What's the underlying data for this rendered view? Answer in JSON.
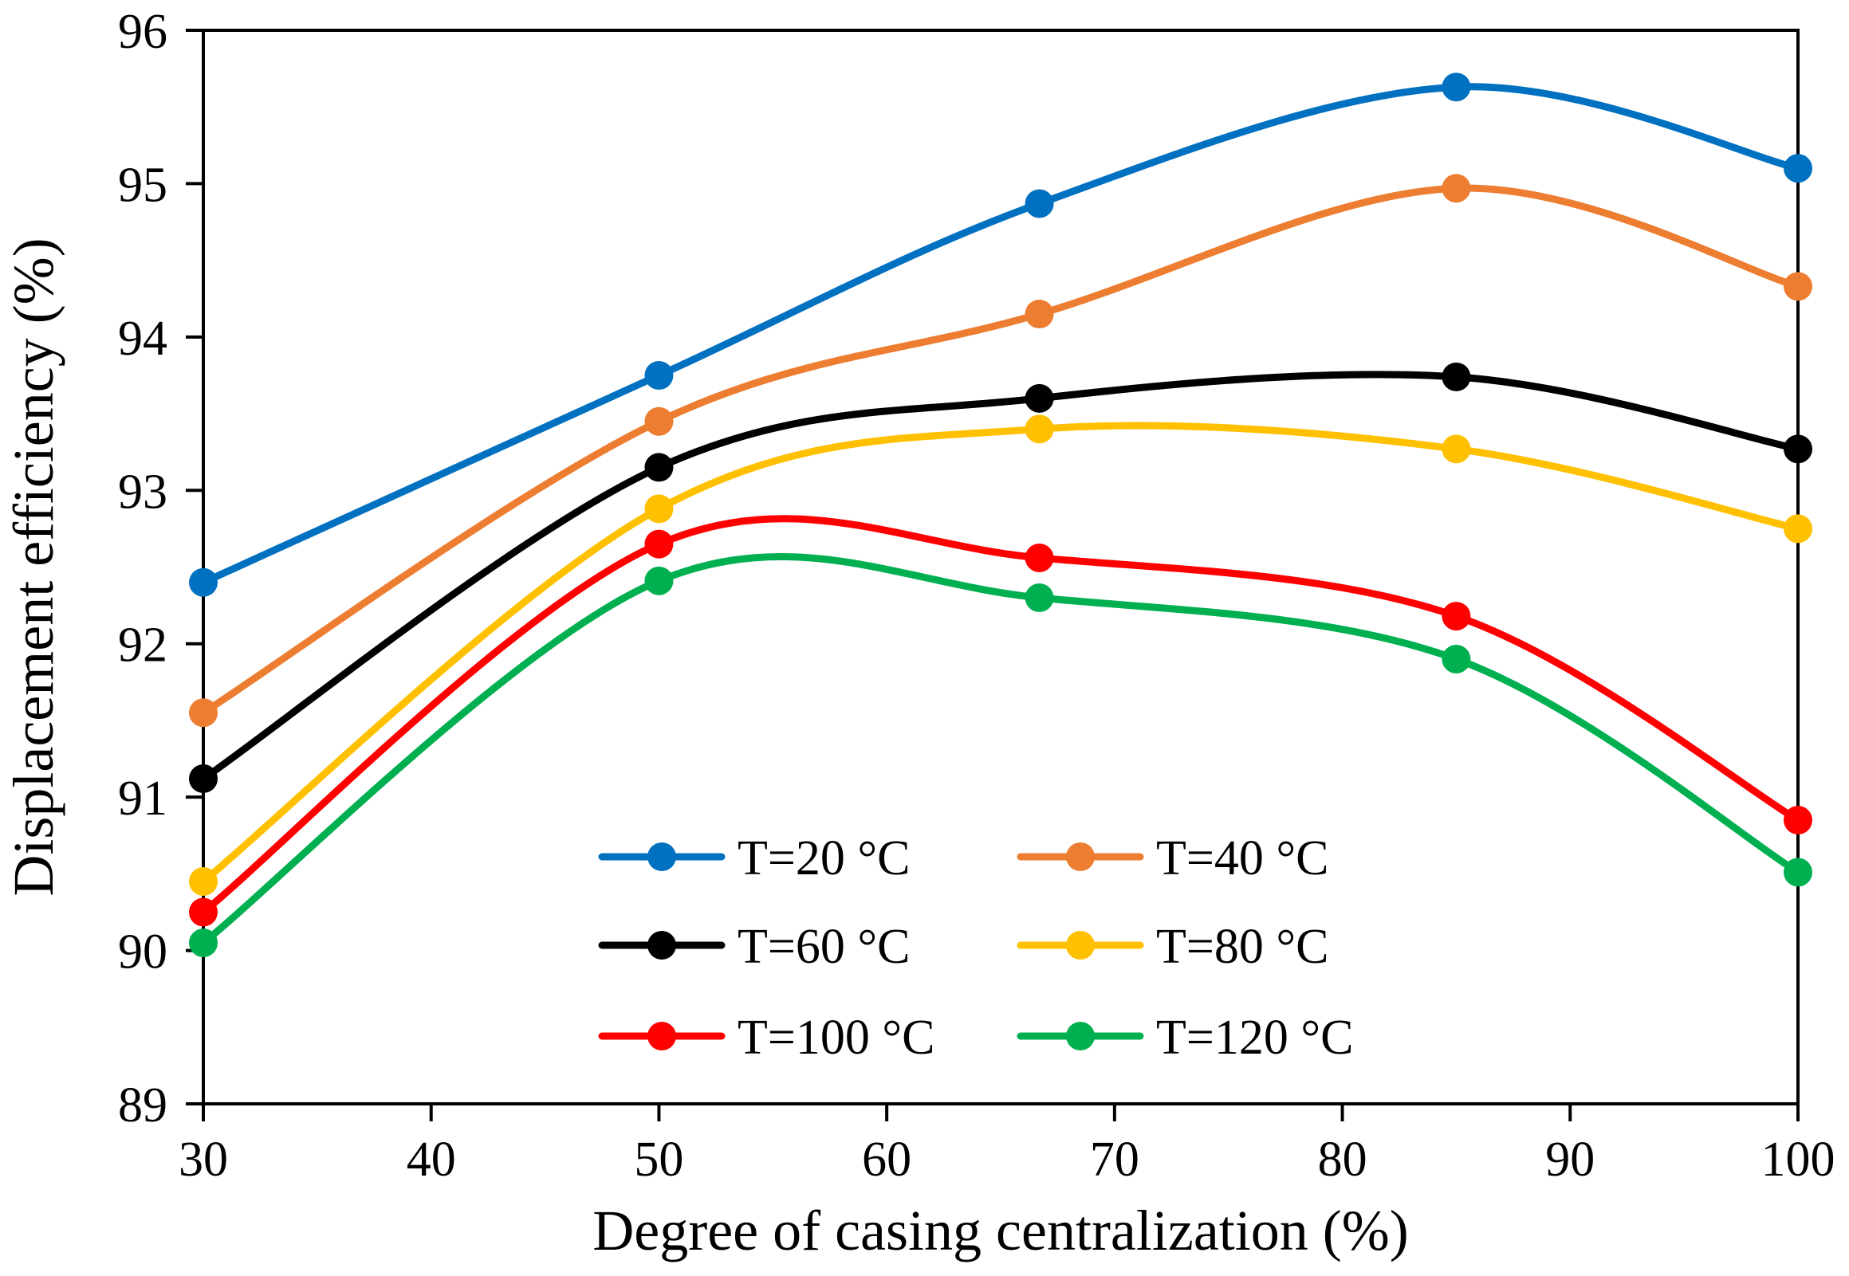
{
  "chart_data": {
    "type": "line",
    "title": "",
    "xlabel": "Degree of casing centralization (%)",
    "ylabel": "Displacement  efficiency (%)",
    "xlim": [
      30,
      100
    ],
    "ylim": [
      89,
      96
    ],
    "xticks": [
      30,
      40,
      50,
      60,
      70,
      80,
      90,
      100
    ],
    "yticks": [
      89,
      90,
      91,
      92,
      93,
      94,
      95,
      96
    ],
    "x": [
      30,
      50,
      66.7,
      85,
      100
    ],
    "grid": false,
    "smooth": true,
    "legend_position": "bottom-center",
    "series": [
      {
        "name": "T=20 °C",
        "color": "#0070C0",
        "values": [
          92.4,
          93.75,
          94.87,
          95.63,
          95.1
        ]
      },
      {
        "name": "T=40 °C",
        "color": "#ED7D31",
        "values": [
          91.55,
          93.45,
          94.15,
          94.97,
          94.33
        ]
      },
      {
        "name": "T=60 °C",
        "color": "#000000",
        "values": [
          91.12,
          93.15,
          93.6,
          93.74,
          93.27
        ]
      },
      {
        "name": "T=80 °C",
        "color": "#FFC000",
        "values": [
          90.45,
          92.88,
          93.4,
          93.27,
          92.75
        ]
      },
      {
        "name": "T=100 °C",
        "color": "#FF0000",
        "values": [
          90.25,
          92.65,
          92.56,
          92.18,
          90.85
        ]
      },
      {
        "name": "T=120 °C",
        "color": "#00B050",
        "values": [
          90.05,
          92.41,
          92.3,
          91.9,
          90.51
        ]
      }
    ]
  }
}
